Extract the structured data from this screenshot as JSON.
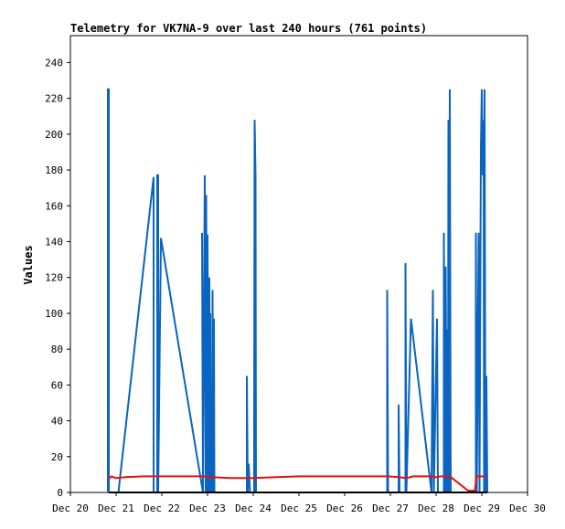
{
  "chart_data": {
    "type": "line",
    "title": "Telemetry for VK7NA-9 over last 240 hours (761 points)",
    "xlabel": "",
    "ylabel": "Values",
    "x_ticks": [
      "Dec 20",
      "Dec 21",
      "Dec 22",
      "Dec 23",
      "Dec 24",
      "Dec 25",
      "Dec 26",
      "Dec 27",
      "Dec 28",
      "Dec 29",
      "Dec 30"
    ],
    "xlim": [
      0,
      10
    ],
    "y_ticks": [
      0,
      20,
      40,
      60,
      80,
      100,
      120,
      140,
      160,
      180,
      200,
      220,
      240
    ],
    "ylim": [
      0,
      255
    ],
    "grid": false,
    "colors": {
      "blue": "#0a64c0",
      "red": "#e81010",
      "black": "#000000"
    },
    "series": [
      {
        "color": "#0a64c0",
        "points": [
          [
            0.82,
            0
          ],
          [
            0.82,
            225
          ],
          [
            0.84,
            225
          ],
          [
            0.84,
            0
          ],
          [
            1.05,
            0
          ],
          [
            1.82,
            176
          ],
          [
            1.82,
            0
          ],
          [
            1.9,
            0
          ],
          [
            1.9,
            177
          ],
          [
            1.92,
            177
          ],
          [
            1.92,
            0
          ],
          [
            1.98,
            142
          ],
          [
            2.9,
            0
          ],
          [
            2.88,
            145
          ],
          [
            2.9,
            0
          ],
          [
            2.94,
            177
          ],
          [
            2.96,
            0
          ],
          [
            2.97,
            166
          ],
          [
            2.99,
            0
          ],
          [
            3.0,
            144
          ],
          [
            3.02,
            0
          ],
          [
            3.04,
            120
          ],
          [
            3.05,
            0
          ],
          [
            3.06,
            100
          ],
          [
            3.07,
            0
          ],
          [
            3.08,
            56
          ],
          [
            3.1,
            0
          ],
          [
            3.11,
            113
          ],
          [
            3.12,
            0
          ],
          [
            3.14,
            97
          ],
          [
            3.15,
            0
          ],
          [
            3.86,
            0
          ],
          [
            3.86,
            65
          ],
          [
            3.88,
            0
          ],
          [
            3.9,
            16
          ],
          [
            3.93,
            0
          ],
          [
            4.02,
            0
          ],
          [
            4.02,
            33
          ],
          [
            4.03,
            208
          ],
          [
            4.05,
            177
          ],
          [
            4.06,
            0
          ],
          [
            6.93,
            0
          ],
          [
            6.93,
            113
          ],
          [
            6.95,
            0
          ],
          [
            7.18,
            0
          ],
          [
            7.18,
            49
          ],
          [
            7.2,
            0
          ],
          [
            7.33,
            0
          ],
          [
            7.33,
            128
          ],
          [
            7.35,
            0
          ],
          [
            7.45,
            97
          ],
          [
            7.9,
            0
          ],
          [
            7.93,
            113
          ],
          [
            7.95,
            0
          ],
          [
            8.02,
            97
          ],
          [
            8.04,
            0
          ],
          [
            8.17,
            0
          ],
          [
            8.17,
            145
          ],
          [
            8.19,
            0
          ],
          [
            8.21,
            126
          ],
          [
            8.23,
            0
          ],
          [
            8.25,
            91
          ],
          [
            8.26,
            0
          ],
          [
            8.27,
            208
          ],
          [
            8.28,
            0
          ],
          [
            8.3,
            225
          ],
          [
            8.32,
            0
          ],
          [
            8.87,
            0
          ],
          [
            8.87,
            145
          ],
          [
            8.89,
            0
          ],
          [
            8.93,
            145
          ],
          [
            8.95,
            0
          ],
          [
            8.98,
            192
          ],
          [
            9.0,
            225
          ],
          [
            9.02,
            177
          ],
          [
            9.04,
            208
          ],
          [
            9.05,
            0
          ],
          [
            9.06,
            225
          ],
          [
            9.08,
            0
          ],
          [
            9.1,
            65
          ],
          [
            9.12,
            0
          ]
        ]
      },
      {
        "color": "#e81010",
        "points": [
          [
            0.84,
            9
          ],
          [
            0.86,
            8
          ],
          [
            0.9,
            9
          ],
          [
            1.0,
            8
          ],
          [
            1.2,
            8.5
          ],
          [
            1.6,
            9
          ],
          [
            1.8,
            9
          ],
          [
            2.0,
            9
          ],
          [
            2.5,
            9
          ],
          [
            2.9,
            9
          ],
          [
            3.1,
            8.5
          ],
          [
            3.5,
            8
          ],
          [
            4.0,
            8
          ],
          [
            4.5,
            8.5
          ],
          [
            5.0,
            9
          ],
          [
            5.5,
            9
          ],
          [
            6.0,
            9
          ],
          [
            6.5,
            9
          ],
          [
            6.93,
            9
          ],
          [
            7.2,
            8.5
          ],
          [
            7.35,
            8
          ],
          [
            7.5,
            9
          ],
          [
            7.9,
            9
          ],
          [
            8.0,
            8.5
          ],
          [
            8.1,
            9
          ],
          [
            8.3,
            9
          ],
          [
            8.35,
            8
          ],
          [
            8.5,
            5
          ],
          [
            8.7,
            1
          ],
          [
            8.85,
            1
          ],
          [
            8.88,
            9
          ],
          [
            8.95,
            9
          ],
          [
            9.0,
            9
          ],
          [
            9.1,
            9
          ]
        ]
      }
    ]
  }
}
